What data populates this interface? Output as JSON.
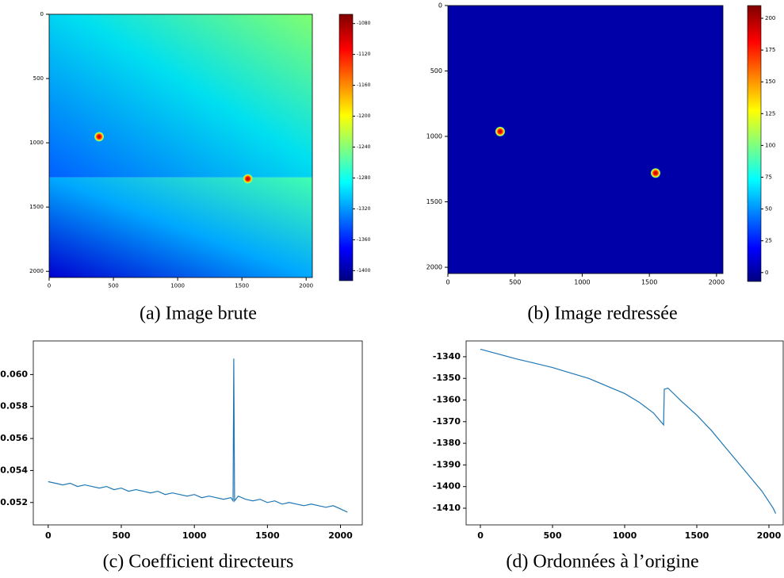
{
  "chart_data": [
    {
      "type": "heatmap",
      "caption": "(a) Image brute",
      "xlim": [
        0,
        2048
      ],
      "ylim": [
        2048,
        0
      ],
      "xticks": [
        0,
        500,
        1000,
        1500,
        2000
      ],
      "yticks": [
        0,
        500,
        1000,
        1500,
        2000
      ],
      "clim": [
        -1413,
        -1068
      ],
      "cticks": [
        -1400,
        -1360,
        -1320,
        -1280,
        -1240,
        -1200,
        -1160,
        -1120,
        -1080
      ]
    },
    {
      "type": "heatmap",
      "caption": "(b) Image redressée",
      "xlim": [
        0,
        2048
      ],
      "ylim": [
        2048,
        0
      ],
      "xticks": [
        0,
        500,
        1000,
        1500,
        2000
      ],
      "yticks": [
        0,
        500,
        1000,
        1500,
        2000
      ],
      "clim": [
        -7,
        210
      ],
      "cticks": [
        0,
        25,
        50,
        75,
        100,
        125,
        150,
        175,
        200
      ]
    },
    {
      "type": "line",
      "caption": "(c) Coefficient directeurs",
      "color": "#1f77b4",
      "xlim": [
        -102,
        2149
      ],
      "ylim": [
        0.0506,
        0.0621
      ],
      "xticks": [
        0,
        500,
        1000,
        1500,
        2000
      ],
      "yticks": [
        0.052,
        0.054,
        0.056,
        0.058,
        {
          "value": 0.06,
          "label": "0.060"
        }
      ],
      "x": [
        0,
        50,
        100,
        150,
        200,
        250,
        300,
        350,
        400,
        450,
        500,
        550,
        600,
        650,
        700,
        750,
        800,
        850,
        900,
        950,
        1000,
        1050,
        1100,
        1150,
        1200,
        1250,
        1265,
        1270,
        1275,
        1300,
        1350,
        1400,
        1450,
        1500,
        1550,
        1600,
        1650,
        1700,
        1750,
        1800,
        1850,
        1900,
        1950,
        2000,
        2047
      ],
      "values": [
        0.0533,
        0.0532,
        0.0531,
        0.0532,
        0.053,
        0.0531,
        0.053,
        0.0529,
        0.053,
        0.0528,
        0.0529,
        0.0527,
        0.0528,
        0.0527,
        0.0526,
        0.0527,
        0.0525,
        0.0526,
        0.0525,
        0.0524,
        0.0525,
        0.0523,
        0.0524,
        0.0523,
        0.0522,
        0.0523,
        0.0521,
        0.061,
        0.0521,
        0.0524,
        0.0522,
        0.0521,
        0.0522,
        0.052,
        0.0521,
        0.0519,
        0.052,
        0.0519,
        0.0518,
        0.0519,
        0.0518,
        0.0517,
        0.0518,
        0.0516,
        0.0514
      ]
    },
    {
      "type": "line",
      "caption": "(d) Ordonnées à l’origine",
      "color": "#1f77b4",
      "xlim": [
        -99,
        2099
      ],
      "ylim": [
        -1417.7,
        -1332.7
      ],
      "xticks": [
        0,
        500,
        1000,
        1500,
        2000
      ],
      "yticks": [
        -1410,
        -1400,
        -1390,
        -1380,
        -1370,
        -1360,
        -1350,
        -1340
      ],
      "x": [
        0,
        125,
        250,
        375,
        500,
        625,
        750,
        875,
        1000,
        1100,
        1200,
        1270,
        1275,
        1300,
        1400,
        1500,
        1600,
        1700,
        1800,
        1900,
        1950,
        2000,
        2030,
        2047
      ],
      "values": [
        -1336.5,
        -1338.8,
        -1341,
        -1343,
        -1345,
        -1347.5,
        -1350,
        -1353.5,
        -1357,
        -1361,
        -1366,
        -1371.5,
        -1355,
        -1354.5,
        -1361,
        -1367,
        -1374,
        -1382,
        -1390,
        -1398,
        -1402,
        -1407,
        -1410,
        -1412.5
      ]
    }
  ]
}
